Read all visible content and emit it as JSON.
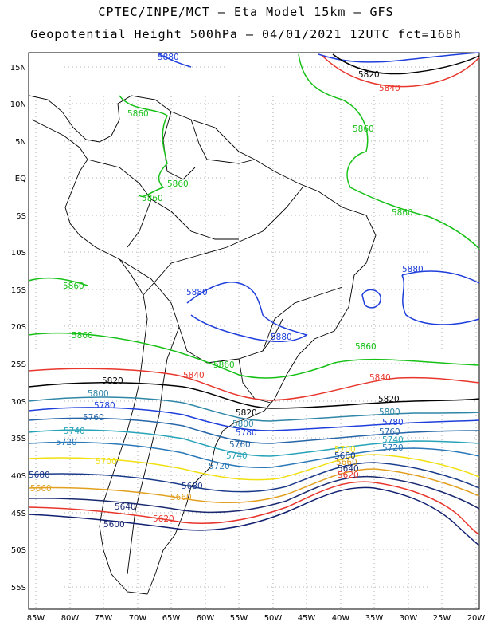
{
  "header": {
    "line1": "CPTEC/INPE/MCT –  Eta Model 15km – GFS",
    "line2": "Geopotential Height 500hPa – 04/01/2021 12UTC fct=168h"
  },
  "map": {
    "lat_labels": [
      "15N",
      "10N",
      "5N",
      "EQ",
      "5S",
      "10S",
      "15S",
      "20S",
      "25S",
      "30S",
      "35S",
      "40S",
      "45S",
      "50S",
      "55S"
    ],
    "lon_labels": [
      "85W",
      "80W",
      "75W",
      "70W",
      "65W",
      "60W",
      "55W",
      "50W",
      "45W",
      "40W",
      "35W",
      "30W",
      "25W",
      "20W"
    ],
    "colors": {
      "c5880": "#1f3fdc",
      "c5860": "#16c016",
      "c5840": "#e8362c",
      "c5820": "#000000",
      "c5800": "#2f86a6",
      "c5780": "#1f3fdc",
      "c5760": "#2666a8",
      "c5740": "#26a3b8",
      "c5720": "#2a78b8",
      "c5700": "#f0e010",
      "c5680": "#1a3a8a",
      "c5660": "#e2a020",
      "c5640": "#1a2a70",
      "c5620": "#e8362c",
      "c5600": "#101f70",
      "coast": "#000000",
      "grid": "#9a9a9a"
    },
    "contour_labels": [
      {
        "id": "l5880a",
        "text": "5880",
        "color": "c5880"
      },
      {
        "id": "l5820a",
        "text": "5820",
        "color": "c5820"
      },
      {
        "id": "l5840a",
        "text": "5840",
        "color": "c5840"
      },
      {
        "id": "l5860a",
        "text": "5860",
        "color": "c5860"
      },
      {
        "id": "l5860b",
        "text": "5860",
        "color": "c5860"
      },
      {
        "id": "l5860c",
        "text": "5860",
        "color": "c5860"
      },
      {
        "id": "l5860d",
        "text": "5860",
        "color": "c5860"
      },
      {
        "id": "l5860e",
        "text": "5860",
        "color": "c5860"
      },
      {
        "id": "l5880b",
        "text": "5880",
        "color": "c5880"
      },
      {
        "id": "l5860f",
        "text": "5860",
        "color": "c5860"
      },
      {
        "id": "l5880c",
        "text": "5880",
        "color": "c5880"
      },
      {
        "id": "l5860g",
        "text": "5860",
        "color": "c5860"
      },
      {
        "id": "l5880d",
        "text": "5880",
        "color": "c5880"
      },
      {
        "id": "l5860h",
        "text": "5860",
        "color": "c5860"
      },
      {
        "id": "l5860i",
        "text": "5860",
        "color": "c5860"
      },
      {
        "id": "l5840b",
        "text": "5840",
        "color": "c5840"
      },
      {
        "id": "l5840c",
        "text": "5840",
        "color": "c5840"
      },
      {
        "id": "l5820b",
        "text": "5820",
        "color": "c5820"
      },
      {
        "id": "l5800a",
        "text": "5800",
        "color": "c5800"
      },
      {
        "id": "l5820c",
        "text": "5820",
        "color": "c5820"
      },
      {
        "id": "l5780a",
        "text": "5780",
        "color": "c5780"
      },
      {
        "id": "l5820d",
        "text": "5820",
        "color": "c5820"
      },
      {
        "id": "l5800b",
        "text": "5800",
        "color": "c5800"
      },
      {
        "id": "l5800c",
        "text": "5800",
        "color": "c5800"
      },
      {
        "id": "l5760a",
        "text": "5760",
        "color": "c5760"
      },
      {
        "id": "l5780b",
        "text": "5780",
        "color": "c5780"
      },
      {
        "id": "l5780c",
        "text": "5780",
        "color": "c5780"
      },
      {
        "id": "l5740a",
        "text": "5740",
        "color": "c5740"
      },
      {
        "id": "l5760b",
        "text": "5760",
        "color": "c5760"
      },
      {
        "id": "l5760c",
        "text": "5760",
        "color": "c5760"
      },
      {
        "id": "l5720a",
        "text": "5720",
        "color": "c5720"
      },
      {
        "id": "l5740b",
        "text": "5740",
        "color": "c5740"
      },
      {
        "id": "l5740c",
        "text": "5740",
        "color": "c5740"
      },
      {
        "id": "l5720b",
        "text": "5720",
        "color": "c5720"
      },
      {
        "id": "l5720c",
        "text": "5720",
        "color": "c5720"
      },
      {
        "id": "l5700a",
        "text": "5700",
        "color": "c5700"
      },
      {
        "id": "l5700b",
        "text": "5700",
        "color": "c5700"
      },
      {
        "id": "l5680a",
        "text": "5680",
        "color": "c5680"
      },
      {
        "id": "l5680b",
        "text": "5680",
        "color": "c5680"
      },
      {
        "id": "l5680c",
        "text": "5680",
        "color": "c5680"
      },
      {
        "id": "l5660a",
        "text": "5660",
        "color": "c5660"
      },
      {
        "id": "l5660b",
        "text": "5660",
        "color": "c5660"
      },
      {
        "id": "l5660c",
        "text": "5660",
        "color": "c5660"
      },
      {
        "id": "l5640a",
        "text": "5640",
        "color": "c5640"
      },
      {
        "id": "l5640b",
        "text": "5640",
        "color": "c5640"
      },
      {
        "id": "l5620a",
        "text": "5620",
        "color": "c5620"
      },
      {
        "id": "l5620b",
        "text": "5620",
        "color": "c5620"
      },
      {
        "id": "l5600a",
        "text": "5600",
        "color": "c5600"
      }
    ]
  }
}
